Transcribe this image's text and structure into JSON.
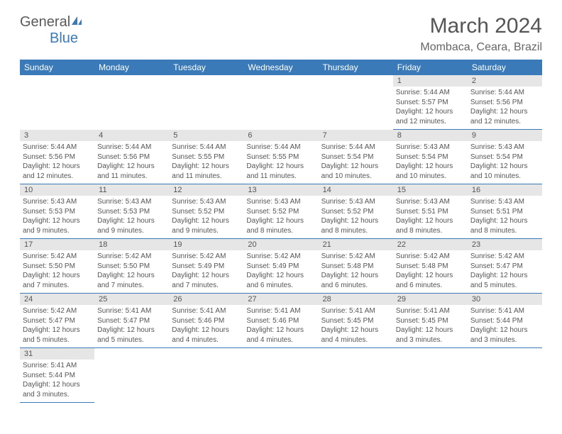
{
  "logo": {
    "text1": "General",
    "text2": "Blue",
    "color1": "#5a5a5a",
    "color2": "#3a7ab8"
  },
  "title": "March 2024",
  "location": "Mombaca, Ceara, Brazil",
  "header_bg": "#3a7ab8",
  "daynum_bg": "#e6e6e6",
  "border_color": "#3a7ab8",
  "days": [
    "Sunday",
    "Monday",
    "Tuesday",
    "Wednesday",
    "Thursday",
    "Friday",
    "Saturday"
  ],
  "weeks": [
    [
      null,
      null,
      null,
      null,
      null,
      {
        "n": "1",
        "sunrise": "5:44 AM",
        "sunset": "5:57 PM",
        "daylight": "12 hours and 12 minutes."
      },
      {
        "n": "2",
        "sunrise": "5:44 AM",
        "sunset": "5:56 PM",
        "daylight": "12 hours and 12 minutes."
      }
    ],
    [
      {
        "n": "3",
        "sunrise": "5:44 AM",
        "sunset": "5:56 PM",
        "daylight": "12 hours and 12 minutes."
      },
      {
        "n": "4",
        "sunrise": "5:44 AM",
        "sunset": "5:56 PM",
        "daylight": "12 hours and 11 minutes."
      },
      {
        "n": "5",
        "sunrise": "5:44 AM",
        "sunset": "5:55 PM",
        "daylight": "12 hours and 11 minutes."
      },
      {
        "n": "6",
        "sunrise": "5:44 AM",
        "sunset": "5:55 PM",
        "daylight": "12 hours and 11 minutes."
      },
      {
        "n": "7",
        "sunrise": "5:44 AM",
        "sunset": "5:54 PM",
        "daylight": "12 hours and 10 minutes."
      },
      {
        "n": "8",
        "sunrise": "5:43 AM",
        "sunset": "5:54 PM",
        "daylight": "12 hours and 10 minutes."
      },
      {
        "n": "9",
        "sunrise": "5:43 AM",
        "sunset": "5:54 PM",
        "daylight": "12 hours and 10 minutes."
      }
    ],
    [
      {
        "n": "10",
        "sunrise": "5:43 AM",
        "sunset": "5:53 PM",
        "daylight": "12 hours and 9 minutes."
      },
      {
        "n": "11",
        "sunrise": "5:43 AM",
        "sunset": "5:53 PM",
        "daylight": "12 hours and 9 minutes."
      },
      {
        "n": "12",
        "sunrise": "5:43 AM",
        "sunset": "5:52 PM",
        "daylight": "12 hours and 9 minutes."
      },
      {
        "n": "13",
        "sunrise": "5:43 AM",
        "sunset": "5:52 PM",
        "daylight": "12 hours and 8 minutes."
      },
      {
        "n": "14",
        "sunrise": "5:43 AM",
        "sunset": "5:52 PM",
        "daylight": "12 hours and 8 minutes."
      },
      {
        "n": "15",
        "sunrise": "5:43 AM",
        "sunset": "5:51 PM",
        "daylight": "12 hours and 8 minutes."
      },
      {
        "n": "16",
        "sunrise": "5:43 AM",
        "sunset": "5:51 PM",
        "daylight": "12 hours and 8 minutes."
      }
    ],
    [
      {
        "n": "17",
        "sunrise": "5:42 AM",
        "sunset": "5:50 PM",
        "daylight": "12 hours and 7 minutes."
      },
      {
        "n": "18",
        "sunrise": "5:42 AM",
        "sunset": "5:50 PM",
        "daylight": "12 hours and 7 minutes."
      },
      {
        "n": "19",
        "sunrise": "5:42 AM",
        "sunset": "5:49 PM",
        "daylight": "12 hours and 7 minutes."
      },
      {
        "n": "20",
        "sunrise": "5:42 AM",
        "sunset": "5:49 PM",
        "daylight": "12 hours and 6 minutes."
      },
      {
        "n": "21",
        "sunrise": "5:42 AM",
        "sunset": "5:48 PM",
        "daylight": "12 hours and 6 minutes."
      },
      {
        "n": "22",
        "sunrise": "5:42 AM",
        "sunset": "5:48 PM",
        "daylight": "12 hours and 6 minutes."
      },
      {
        "n": "23",
        "sunrise": "5:42 AM",
        "sunset": "5:47 PM",
        "daylight": "12 hours and 5 minutes."
      }
    ],
    [
      {
        "n": "24",
        "sunrise": "5:42 AM",
        "sunset": "5:47 PM",
        "daylight": "12 hours and 5 minutes."
      },
      {
        "n": "25",
        "sunrise": "5:41 AM",
        "sunset": "5:47 PM",
        "daylight": "12 hours and 5 minutes."
      },
      {
        "n": "26",
        "sunrise": "5:41 AM",
        "sunset": "5:46 PM",
        "daylight": "12 hours and 4 minutes."
      },
      {
        "n": "27",
        "sunrise": "5:41 AM",
        "sunset": "5:46 PM",
        "daylight": "12 hours and 4 minutes."
      },
      {
        "n": "28",
        "sunrise": "5:41 AM",
        "sunset": "5:45 PM",
        "daylight": "12 hours and 4 minutes."
      },
      {
        "n": "29",
        "sunrise": "5:41 AM",
        "sunset": "5:45 PM",
        "daylight": "12 hours and 3 minutes."
      },
      {
        "n": "30",
        "sunrise": "5:41 AM",
        "sunset": "5:44 PM",
        "daylight": "12 hours and 3 minutes."
      }
    ],
    [
      {
        "n": "31",
        "sunrise": "5:41 AM",
        "sunset": "5:44 PM",
        "daylight": "12 hours and 3 minutes."
      },
      null,
      null,
      null,
      null,
      null,
      null
    ]
  ],
  "labels": {
    "sunrise": "Sunrise:",
    "sunset": "Sunset:",
    "daylight": "Daylight:"
  }
}
